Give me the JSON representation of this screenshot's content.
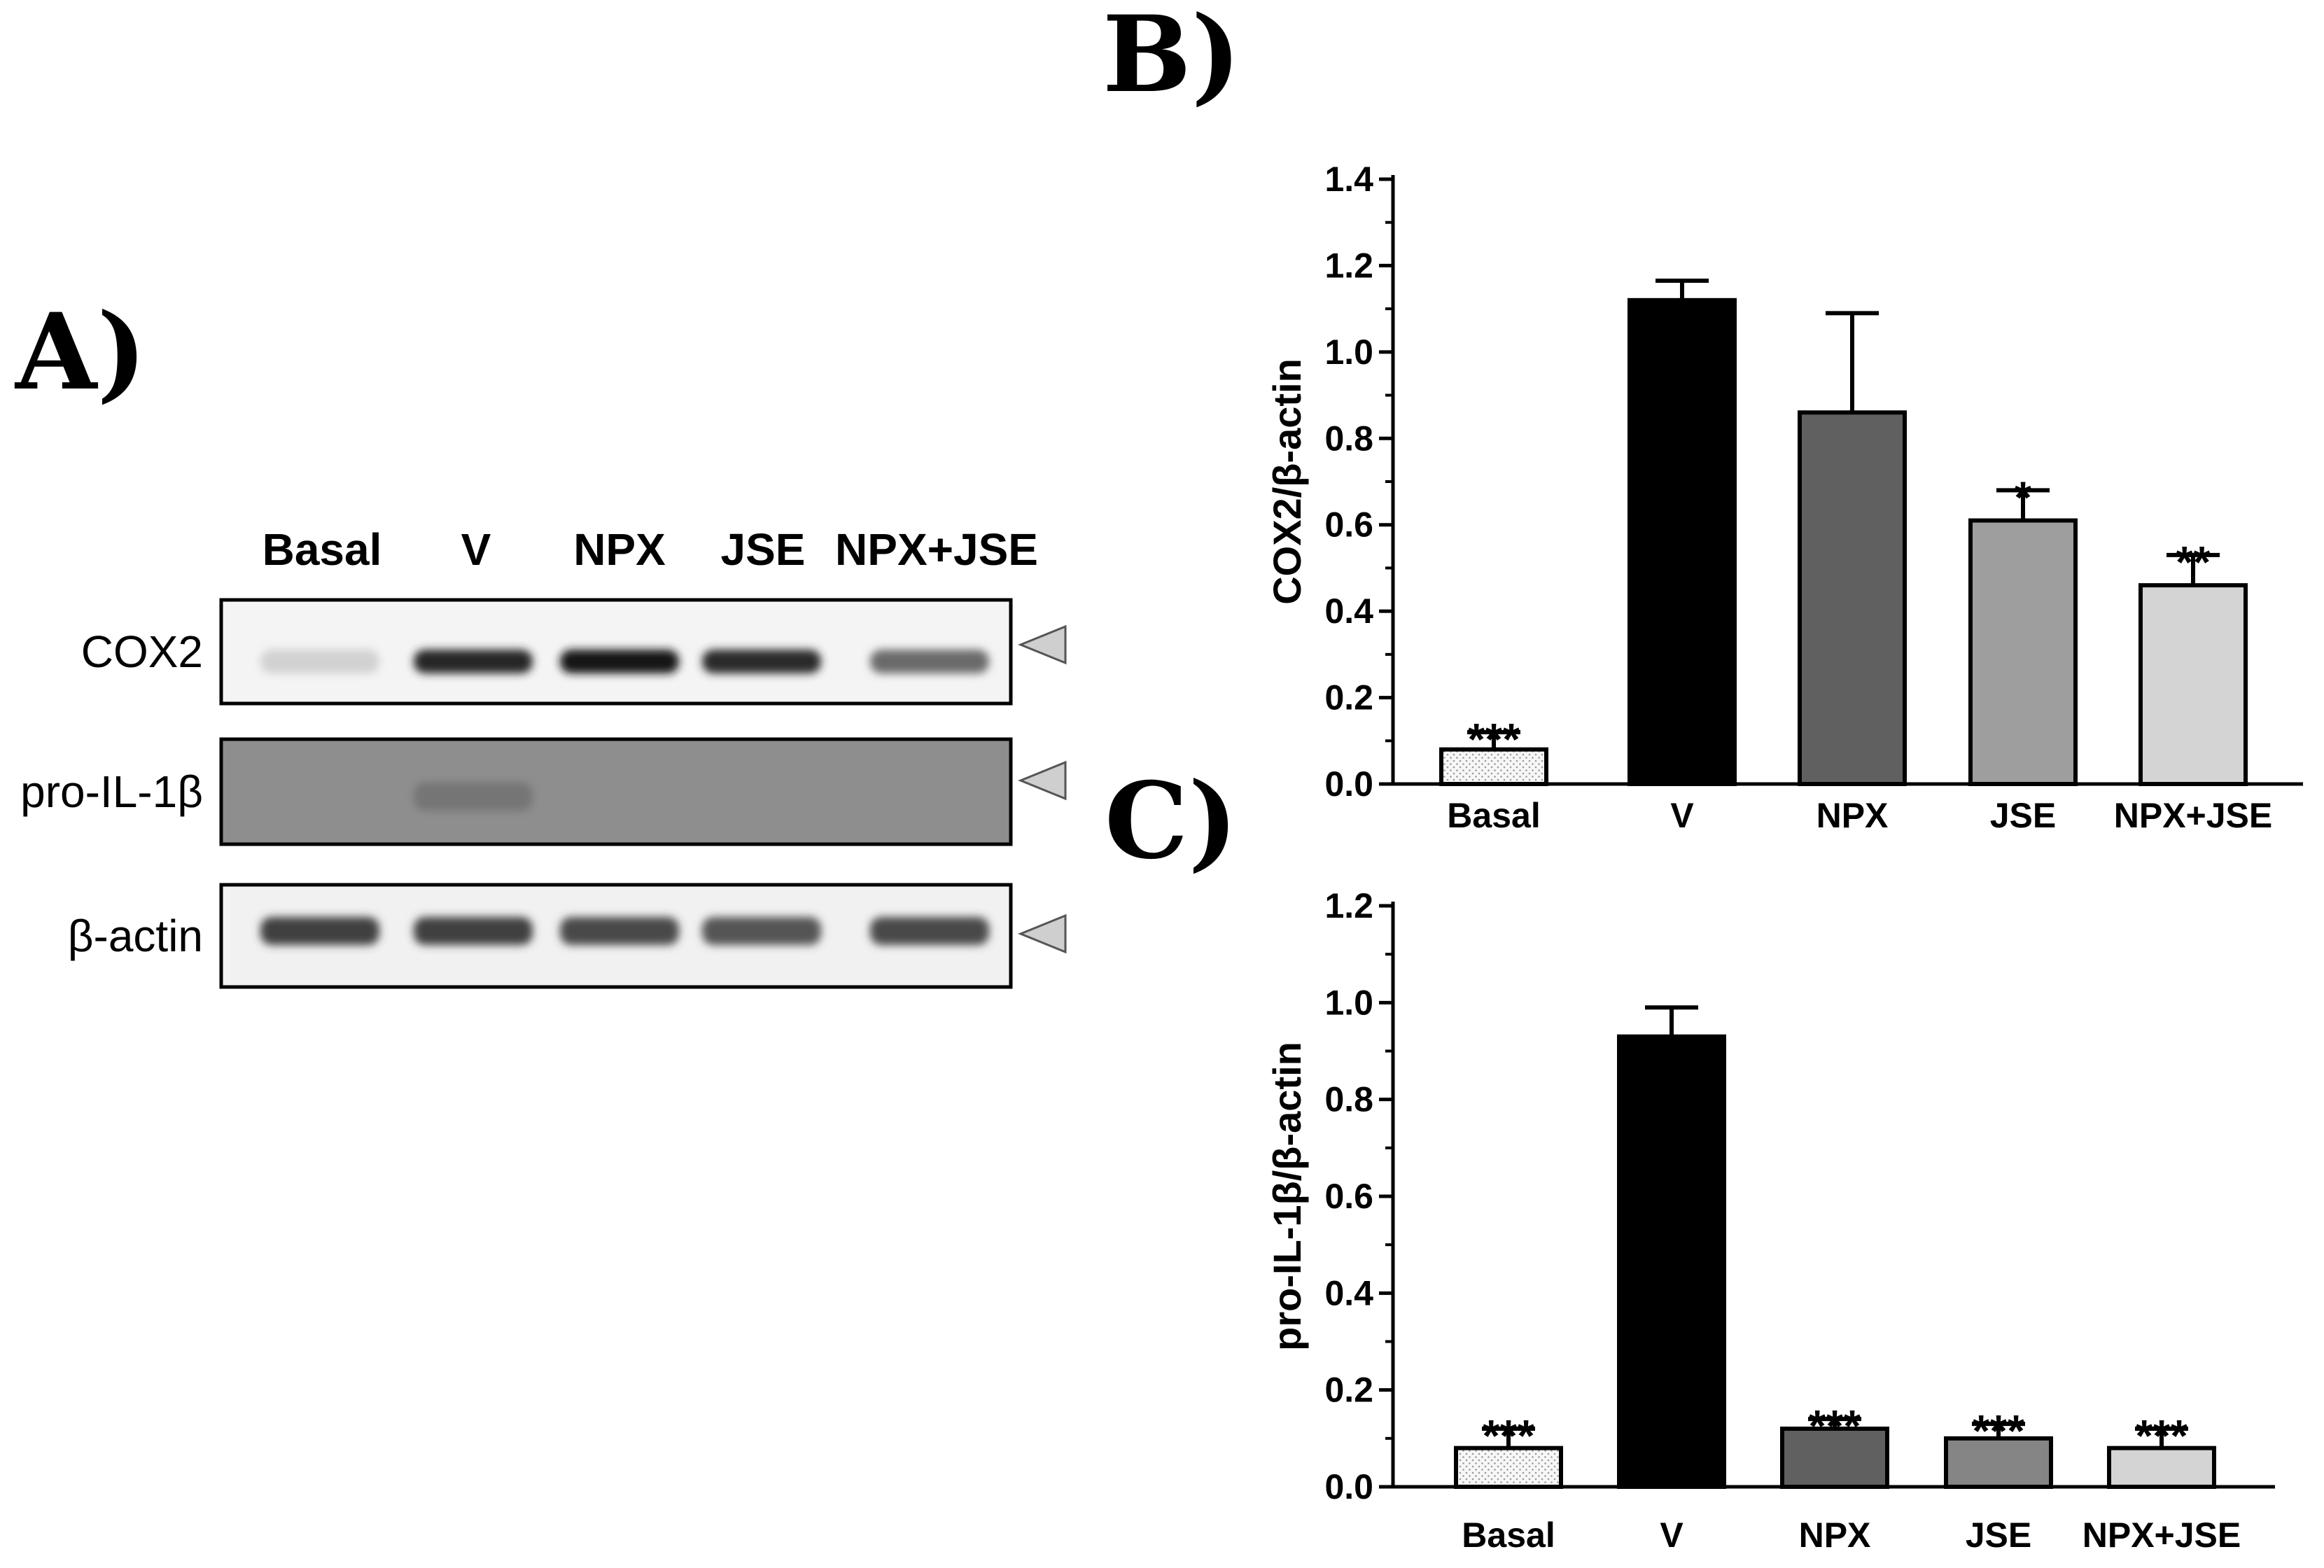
{
  "panel_labels": {
    "a": "A)",
    "b": "B)",
    "c": "C)"
  },
  "blot": {
    "lanes": [
      "Basal",
      "V",
      "NPX",
      "JSE",
      "NPX+JSE"
    ],
    "rows": [
      {
        "label": "COX2",
        "band_intensity": [
          0.12,
          0.92,
          1.0,
          0.9,
          0.6
        ]
      },
      {
        "label": "pro-IL-1β",
        "band_intensity": [
          0.0,
          0.55,
          0.0,
          0.0,
          0.0
        ]
      },
      {
        "label": "β-actin",
        "band_intensity": [
          0.8,
          0.8,
          0.75,
          0.7,
          0.75
        ]
      }
    ],
    "marker_icon": "triangle-arrow-icon"
  },
  "chart_data": [
    {
      "type": "bar",
      "ylabel": "COX2/β-actin",
      "categories": [
        "Basal",
        "V",
        "NPX",
        "JSE",
        "NPX+JSE"
      ],
      "values": [
        0.08,
        1.12,
        0.86,
        0.61,
        0.46
      ],
      "errors": [
        0.04,
        0.045,
        0.23,
        0.07,
        0.07
      ],
      "significance": [
        "***",
        "",
        "",
        "*",
        "**"
      ],
      "ylim": [
        0,
        1.4
      ],
      "yticks": [
        "0.0",
        "0.2",
        "0.4",
        "0.6",
        "0.8",
        "1.0",
        "1.2",
        "1.4"
      ],
      "colors": [
        "#f2f2f2",
        "#000000",
        "#606060",
        "#9e9e9e",
        "#d4d4d4"
      ]
    },
    {
      "type": "bar",
      "ylabel": "pro-IL-1β/β-actin",
      "categories": [
        "Basal",
        "V",
        "NPX",
        "JSE",
        "NPX+JSE"
      ],
      "values": [
        0.08,
        0.93,
        0.12,
        0.1,
        0.08
      ],
      "errors": [
        0.04,
        0.06,
        0.02,
        0.03,
        0.04
      ],
      "significance": [
        "***",
        "",
        "***",
        "***",
        "***"
      ],
      "ylim": [
        0,
        1.2
      ],
      "yticks": [
        "0.0",
        "0.2",
        "0.4",
        "0.6",
        "0.8",
        "1.0",
        "1.2"
      ],
      "colors": [
        "#f2f2f2",
        "#000000",
        "#606060",
        "#858585",
        "#d4d4d4"
      ]
    }
  ]
}
